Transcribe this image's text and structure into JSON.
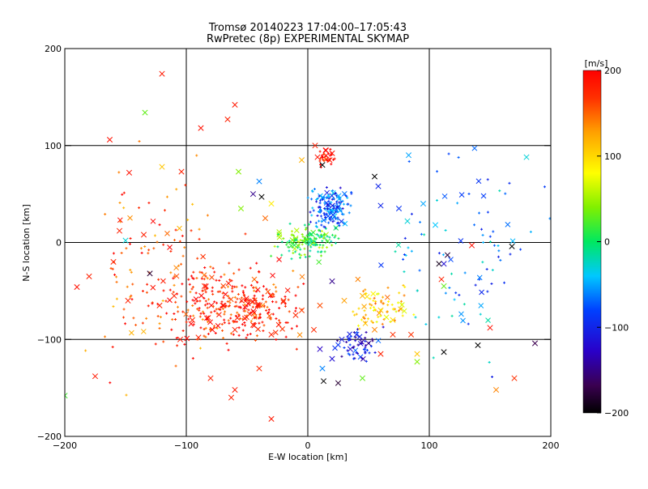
{
  "chart_data": {
    "type": "scatter",
    "title": "Tromsø 20140223 17:04:00–17:05:43",
    "subtitle": "RwPretec (8p) EXPERIMENTAL SKYMAP",
    "xlabel": "E-W location [km]",
    "ylabel": "N-S location [km]",
    "xlim": [
      -200,
      200
    ],
    "ylim": [
      -200,
      200
    ],
    "x_ticks": [
      "-200",
      "-100",
      "0",
      "100",
      "200"
    ],
    "y_ticks": [
      "-200",
      "-100",
      "0",
      "100",
      "200"
    ],
    "grid": true,
    "colorbar": {
      "label": "[m/s]",
      "range": [
        -200,
        200
      ],
      "ticks": [
        "200",
        "100",
        "0",
        "-100",
        "-200"
      ],
      "colormap": "rainbow: black-purple-blue-cyan-green-yellow-orange-red"
    },
    "marker_types": [
      "x",
      "+"
    ],
    "clusters": [
      {
        "region": "upper-center",
        "x": [
          0,
          40
        ],
        "y": [
          10,
          60
        ],
        "velocity": -80,
        "n": 160
      },
      {
        "region": "north-red",
        "x": [
          5,
          25
        ],
        "y": [
          75,
          100
        ],
        "velocity": 190,
        "n": 30
      },
      {
        "region": "center-green",
        "x": [
          -30,
          30
        ],
        "y": [
          -20,
          20
        ],
        "velocity": 20,
        "n": 140
      },
      {
        "region": "lower-left-red",
        "x": [
          -130,
          10
        ],
        "y": [
          -110,
          -20
        ],
        "velocity": 180,
        "n": 320
      },
      {
        "region": "lower-center-blue",
        "x": [
          20,
          60
        ],
        "y": [
          -125,
          -85
        ],
        "velocity": -110,
        "n": 60
      },
      {
        "region": "southeast-yellow",
        "x": [
          30,
          90
        ],
        "y": [
          -90,
          -40
        ],
        "velocity": 110,
        "n": 80
      },
      {
        "region": "west-scatter",
        "x": [
          -190,
          -60
        ],
        "y": [
          -160,
          100
        ],
        "velocity": 160,
        "n": 120
      },
      {
        "region": "east-scatter",
        "x": [
          60,
          200
        ],
        "y": [
          -130,
          100
        ],
        "velocity": -60,
        "n": 90
      }
    ],
    "sample_points": [
      {
        "x": -120,
        "y": 174,
        "v": 185,
        "m": "x"
      },
      {
        "x": -134,
        "y": 134,
        "v": 30,
        "m": "x"
      },
      {
        "x": -88,
        "y": 118,
        "v": 190,
        "m": "x"
      },
      {
        "x": -60,
        "y": 142,
        "v": 185,
        "m": "x"
      },
      {
        "x": -66,
        "y": 127,
        "v": 180,
        "m": "x"
      },
      {
        "x": -163,
        "y": 106,
        "v": 190,
        "m": "x"
      },
      {
        "x": -147,
        "y": 72,
        "v": 190,
        "m": "x"
      },
      {
        "x": -104,
        "y": 73,
        "v": 180,
        "m": "x"
      },
      {
        "x": -120,
        "y": 78,
        "v": 110,
        "m": "x"
      },
      {
        "x": -57,
        "y": 73,
        "v": 40,
        "m": "x"
      },
      {
        "x": -155,
        "y": 12,
        "v": 180,
        "m": "x"
      },
      {
        "x": -150,
        "y": 2,
        "v": -30,
        "m": "x"
      },
      {
        "x": -135,
        "y": 8,
        "v": 180,
        "m": "x"
      },
      {
        "x": -160,
        "y": -20,
        "v": 180,
        "m": "x"
      },
      {
        "x": -180,
        "y": -35,
        "v": 180,
        "m": "x"
      },
      {
        "x": -190,
        "y": -46,
        "v": 190,
        "m": "x"
      },
      {
        "x": -130,
        "y": -32,
        "v": -180,
        "m": "x"
      },
      {
        "x": -148,
        "y": -60,
        "v": 180,
        "m": "x"
      },
      {
        "x": -95,
        "y": -80,
        "v": 180,
        "m": "x"
      },
      {
        "x": -70,
        "y": -65,
        "v": 185,
        "m": "x"
      },
      {
        "x": -60,
        "y": -90,
        "v": 180,
        "m": "x"
      },
      {
        "x": -45,
        "y": -85,
        "v": 175,
        "m": "x"
      },
      {
        "x": -30,
        "y": -95,
        "v": 180,
        "m": "x"
      },
      {
        "x": -20,
        "y": -60,
        "v": 170,
        "m": "x"
      },
      {
        "x": -10,
        "y": -75,
        "v": 175,
        "m": "x"
      },
      {
        "x": 10,
        "y": -65,
        "v": 160,
        "m": "x"
      },
      {
        "x": 20,
        "y": -40,
        "v": -150,
        "m": "x"
      },
      {
        "x": 30,
        "y": -60,
        "v": 130,
        "m": "x"
      },
      {
        "x": 45,
        "y": -55,
        "v": 120,
        "m": "x"
      },
      {
        "x": 60,
        "y": -70,
        "v": 110,
        "m": "x"
      },
      {
        "x": 70,
        "y": -80,
        "v": 100,
        "m": "x"
      },
      {
        "x": 55,
        "y": -90,
        "v": 140,
        "m": "x"
      },
      {
        "x": 70,
        "y": -95,
        "v": 170,
        "m": "x"
      },
      {
        "x": 85,
        "y": -95,
        "v": 170,
        "m": "x"
      },
      {
        "x": 35,
        "y": -110,
        "v": -120,
        "m": "x"
      },
      {
        "x": 28,
        "y": -100,
        "v": -110,
        "m": "x"
      },
      {
        "x": 40,
        "y": -95,
        "v": -100,
        "m": "x"
      },
      {
        "x": 20,
        "y": -120,
        "v": -120,
        "m": "x"
      },
      {
        "x": 10,
        "y": -110,
        "v": -130,
        "m": "x"
      },
      {
        "x": 12,
        "y": -130,
        "v": -60,
        "m": "x"
      },
      {
        "x": 13,
        "y": -143,
        "v": -200,
        "m": "x"
      },
      {
        "x": 25,
        "y": -145,
        "v": -180,
        "m": "x"
      },
      {
        "x": 45,
        "y": -140,
        "v": 30,
        "m": "x"
      },
      {
        "x": 60,
        "y": -115,
        "v": 180,
        "m": "x"
      },
      {
        "x": 90,
        "y": -115,
        "v": 110,
        "m": "x"
      },
      {
        "x": 90,
        "y": -123,
        "v": 40,
        "m": "x"
      },
      {
        "x": 112,
        "y": -113,
        "v": -200,
        "m": "x"
      },
      {
        "x": 140,
        "y": -106,
        "v": -200,
        "m": "x"
      },
      {
        "x": 150,
        "y": -88,
        "v": 190,
        "m": "x"
      },
      {
        "x": 170,
        "y": -140,
        "v": 170,
        "m": "x"
      },
      {
        "x": 155,
        "y": -152,
        "v": 140,
        "m": "x"
      },
      {
        "x": 187,
        "y": -104,
        "v": -170,
        "m": "x"
      },
      {
        "x": 110,
        "y": -38,
        "v": 180,
        "m": "x"
      },
      {
        "x": 112,
        "y": -45,
        "v": 30,
        "m": "x"
      },
      {
        "x": 112,
        "y": -22,
        "v": -120,
        "m": "x"
      },
      {
        "x": 115,
        "y": -13,
        "v": -180,
        "m": "x"
      },
      {
        "x": 108,
        "y": -22,
        "v": -190,
        "m": "x"
      },
      {
        "x": 135,
        "y": -3,
        "v": 190,
        "m": "x"
      },
      {
        "x": 168,
        "y": -4,
        "v": -200,
        "m": "x"
      },
      {
        "x": 105,
        "y": 18,
        "v": -40,
        "m": "x"
      },
      {
        "x": 95,
        "y": 40,
        "v": -50,
        "m": "x"
      },
      {
        "x": 82,
        "y": 22,
        "v": -30,
        "m": "x"
      },
      {
        "x": 60,
        "y": 38,
        "v": -100,
        "m": "x"
      },
      {
        "x": 75,
        "y": 35,
        "v": -90,
        "m": "x"
      },
      {
        "x": 83,
        "y": 90,
        "v": -50,
        "m": "x"
      },
      {
        "x": 180,
        "y": 88,
        "v": -30,
        "m": "x"
      },
      {
        "x": 55,
        "y": 68,
        "v": -200,
        "m": "x"
      },
      {
        "x": 58,
        "y": 58,
        "v": -100,
        "m": "x"
      },
      {
        "x": 12,
        "y": 80,
        "v": -200,
        "m": "x"
      },
      {
        "x": 8,
        "y": 88,
        "v": 190,
        "m": "x"
      },
      {
        "x": 15,
        "y": 95,
        "v": 195,
        "m": "x"
      },
      {
        "x": 20,
        "y": 92,
        "v": 190,
        "m": "x"
      },
      {
        "x": 18,
        "y": 85,
        "v": 185,
        "m": "x"
      },
      {
        "x": 6,
        "y": 100,
        "v": 180,
        "m": "x"
      },
      {
        "x": -5,
        "y": 85,
        "v": 120,
        "m": "x"
      },
      {
        "x": -40,
        "y": 63,
        "v": -60,
        "m": "x"
      },
      {
        "x": -38,
        "y": 47,
        "v": -200,
        "m": "x"
      },
      {
        "x": -45,
        "y": 50,
        "v": -150,
        "m": "x"
      },
      {
        "x": -30,
        "y": 40,
        "v": 90,
        "m": "x"
      },
      {
        "x": -55,
        "y": 35,
        "v": 40,
        "m": "x"
      },
      {
        "x": -35,
        "y": 25,
        "v": 150,
        "m": "x"
      },
      {
        "x": -80,
        "y": -140,
        "v": 180,
        "m": "x"
      },
      {
        "x": -60,
        "y": -152,
        "v": 185,
        "m": "x"
      },
      {
        "x": -63,
        "y": -160,
        "v": 180,
        "m": "x"
      },
      {
        "x": -30,
        "y": -182,
        "v": 185,
        "m": "x"
      },
      {
        "x": -175,
        "y": -138,
        "v": 185,
        "m": "x"
      },
      {
        "x": -200,
        "y": -158,
        "v": 20,
        "m": "x"
      },
      {
        "x": -122,
        "y": -65,
        "v": 180,
        "m": "x"
      },
      {
        "x": -105,
        "y": -100,
        "v": 185,
        "m": "x"
      },
      {
        "x": -90,
        "y": -98,
        "v": 180,
        "m": "x"
      },
      {
        "x": -40,
        "y": -130,
        "v": 175,
        "m": "x"
      },
      {
        "x": -5,
        "y": -70,
        "v": 165,
        "m": "x"
      },
      {
        "x": 5,
        "y": -90,
        "v": 175,
        "m": "x"
      },
      {
        "x": -85,
        "y": -45,
        "v": 180,
        "m": "x"
      },
      {
        "x": -110,
        "y": -55,
        "v": 180,
        "m": "x"
      }
    ]
  }
}
